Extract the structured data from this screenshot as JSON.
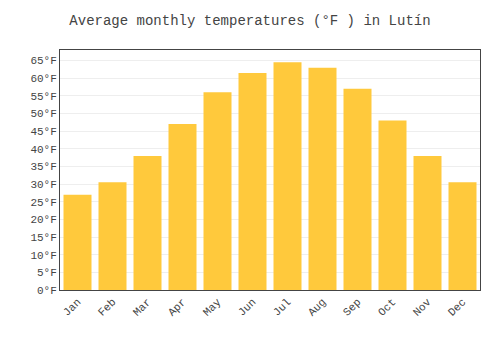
{
  "chart_data": {
    "type": "bar",
    "title": "Average monthly temperatures (°F ) in Lutín",
    "categories": [
      "Jan",
      "Feb",
      "Mar",
      "Apr",
      "May",
      "Jun",
      "Jul",
      "Aug",
      "Sep",
      "Oct",
      "Nov",
      "Dec"
    ],
    "values": [
      27,
      30.5,
      38,
      47,
      56,
      61.5,
      64.5,
      63,
      57,
      48,
      38,
      30.5
    ],
    "color": "#FFC93C",
    "ylim": [
      0,
      68
    ],
    "yticks": [
      {
        "value": 0,
        "label": "0°F"
      },
      {
        "value": 5,
        "label": "5°F"
      },
      {
        "value": 10,
        "label": "10°F"
      },
      {
        "value": 15,
        "label": "15°F"
      },
      {
        "value": 20,
        "label": "20°F"
      },
      {
        "value": 25,
        "label": "25°F"
      },
      {
        "value": 30,
        "label": "30°F"
      },
      {
        "value": 35,
        "label": "35°F"
      },
      {
        "value": 40,
        "label": "40°F"
      },
      {
        "value": 45,
        "label": "45°F"
      },
      {
        "value": 50,
        "label": "50°F"
      },
      {
        "value": 55,
        "label": "55°F"
      },
      {
        "value": 60,
        "label": "60°F"
      },
      {
        "value": 65,
        "label": "65°F"
      }
    ],
    "grid": true
  }
}
